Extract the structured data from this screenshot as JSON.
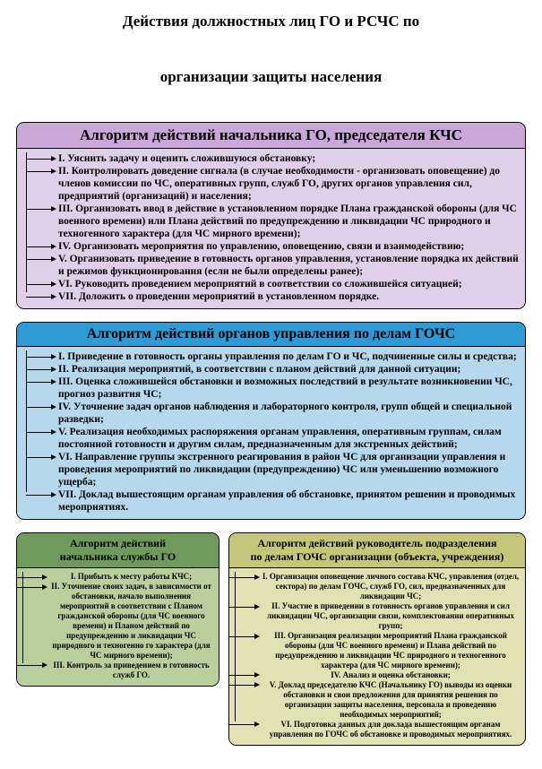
{
  "title_line1": "Действия должностных лиц ГО и РСЧС по",
  "title_line2": "организации защиты населения",
  "colors": {
    "b1_header": "#c9a8d8",
    "b1_body": "#e0cfe9",
    "b2_header": "#2e9ad6",
    "b2_body": "#b6d8ec",
    "b3_header": "#6f9a5e",
    "b3_body": "#b9cf9e",
    "b4_header": "#c4c77a",
    "b4_body": "#e0e2b4",
    "border": "#000000",
    "text": "#000000"
  },
  "block1": {
    "header": "Алгоритм действий начальника ГО, председателя КЧС",
    "items": [
      "I. Уяснить задачу и оценить сложившуюся обстановку;",
      "II. Контролировать доведение сигнала (в случае необходимости - организовать оповещение) до членов комиссии по ЧС, оперативных  групп, служб ГО, других органов управления сил, предприятий (организаций) и населения;",
      "III. Организовать ввод в действие в установленном порядке Плана  гражданской обороны (для ЧС военного времени) или Плана действий по предупреждению и ликвидации ЧС природного и   техногенного характера (для ЧС мирного времени);",
      "IV. Организовать мероприятия по управлению, оповещению, связи  и взаимодействию;",
      "V. Организовать приведение в готовность органов управления, установление порядка их действий и режимов функционирования (если не были определены ранее);",
      "VI. Руководить проведением мероприятий в соответствии со сложившейся ситуацией;",
      "VII. Доложить о проведении мероприятий в установленном порядке."
    ]
  },
  "block2": {
    "header": "Алгоритм действий органов управления по делам ГОЧС",
    "items": [
      "I. Приведение в готовность органы управления по делам ГО и ЧС, подчиненные силы и средства;",
      "II. Реализация мероприятий, в соответствии с планом действий для данной ситуации;",
      "III. Оценка сложившейся обстановки и возможных последствий в результате возникновении ЧС, прогноз развития ЧС;",
      "IV. Уточнение задач органов наблюдения и лабораторного контроля, групп общей и специальной разведки;",
      "V. Реализация необходимых распоряжения органам управления, оперативным группам, силам постоянной готовности и другим силам, предназначенным для экстренных действий;",
      "VI. Направление группы экстренного реагирования в район ЧС для организации управления и проведения мероприятий по ликвидации (предупреждению) ЧС или уменьшению возможного ущерба;",
      "VII. Доклад вышестоящим органам управления об обстановке, принятом решении и проводимых мероприятиях."
    ]
  },
  "block3": {
    "header_l1": "Алгоритм действий",
    "header_l2": "начальника службы ГО",
    "items": [
      "I. Прибыть к месту работы КЧС;",
      "II. Уточнение своих задач, в зависимости от обстановки, начало выполнения мероприятий в соответствии с Планом гражданской обороны (для ЧС военного времени) и  Планом действий по предупреждению и ликвидации ЧС природного и техногенно го характера (для ЧС мирного времени);",
      "III. Контроль за приведением в готовность служб ГО."
    ]
  },
  "block4": {
    "header_l1": "Алгоритм действий руководитель подразделения",
    "header_l2": "по делам ГОЧС организации (объекта, учреждения)",
    "items": [
      "I. Организация оповещение личного состава КЧС, управления (отдел, сектора) по делам ГОЧС, служб ГО, сил, предназначенных для ликвидации ЧС;",
      "II. Участие в приведении в готовность органов управления и сил ликвидации ЧС,  организации связи, комплектовании оперативных  групп;",
      "III. Организация реализации мероприятий Плана  гражданской обороны  (для ЧС военного времени) и  Плана действий по предупреждению и ликвидации ЧС природного и техногенного характера (для ЧС мирного времени);",
      "IV.  Анализ и оценка обстановки;",
      "V. Доклад председателю КЧС (Начальнику ГО) выводы из оценки обстановки и свои предложения для принятия решения по  организации защиты населения, персонала и проведению необходимых мероприятий;",
      "VI. Подготовка данных для доклада вышестоящим органам управления по ГОЧС об обстановке и проводимых мероприятиях."
    ]
  }
}
